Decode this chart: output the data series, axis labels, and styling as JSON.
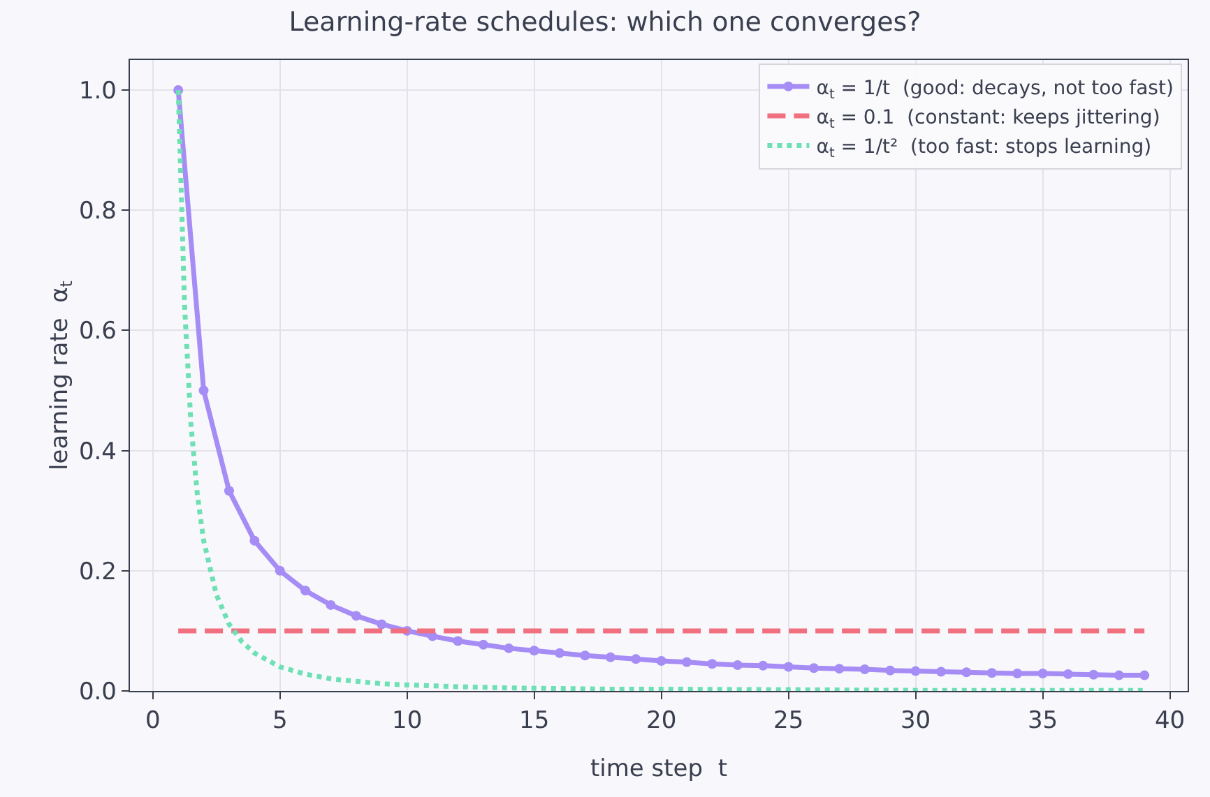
{
  "chart_data": {
    "type": "line",
    "title": "Learning-rate schedules: which one converges?",
    "xlabel": "time step  t",
    "ylabel": "learning rate  α$_{t}$",
    "xlim": [
      -0.9,
      40.7
    ],
    "xticks": [
      0,
      5,
      10,
      15,
      20,
      25,
      30,
      35,
      40
    ],
    "ylim": [
      0,
      1.05
    ],
    "yticks": [
      {
        "value": 0,
        "label": "0.0"
      },
      {
        "value": 0.2,
        "label": "0.2"
      },
      {
        "value": 0.4,
        "label": "0.4"
      },
      {
        "value": 0.6,
        "label": "0.6"
      },
      {
        "value": 0.8,
        "label": "0.8"
      },
      {
        "value": 1,
        "label": "1.0"
      }
    ],
    "grid": true,
    "legend": "top right",
    "series": [
      {
        "name": "α$_{t}$ = 1/t  (good: decays, not too fast)",
        "color": "#a68cf5",
        "marker": "circle",
        "line_style": "solid",
        "x": [
          1,
          2,
          3,
          4,
          5,
          6,
          7,
          8,
          9,
          10,
          11,
          12,
          13,
          14,
          15,
          16,
          17,
          18,
          19,
          20,
          21,
          22,
          23,
          24,
          25,
          26,
          27,
          28,
          29,
          30,
          31,
          32,
          33,
          34,
          35,
          36,
          37,
          38,
          39
        ],
        "values": [
          1,
          0.5,
          0.333,
          0.25,
          0.2,
          0.167,
          0.143,
          0.125,
          0.111,
          0.1,
          0.091,
          0.083,
          0.077,
          0.071,
          0.067,
          0.063,
          0.059,
          0.056,
          0.053,
          0.05,
          0.048,
          0.045,
          0.043,
          0.042,
          0.04,
          0.038,
          0.037,
          0.036,
          0.034,
          0.033,
          0.032,
          0.031,
          0.03,
          0.029,
          0.029,
          0.028,
          0.027,
          0.026,
          0.026
        ]
      },
      {
        "name": "α$_{t}$ = 0.1  (constant: keeps jittering)",
        "color": "#f0707f",
        "marker": "none",
        "line_style": "dashed",
        "x": [
          1,
          39
        ],
        "values": [
          0.1,
          0.1
        ]
      },
      {
        "name": "α$_{t}$ = 1/t²  (too fast: stops learning)",
        "color": "#6ee0b4",
        "marker": "none",
        "line_style": "dotted",
        "x": [
          1,
          1.25,
          1.5,
          1.75,
          2,
          2.5,
          3,
          3.5,
          4,
          5,
          6,
          7,
          8,
          9,
          10,
          12,
          14,
          16,
          18,
          20,
          25,
          30,
          35,
          39
        ],
        "values": [
          1,
          0.64,
          0.444,
          0.327,
          0.25,
          0.16,
          0.111,
          0.082,
          0.063,
          0.04,
          0.028,
          0.02,
          0.016,
          0.012,
          0.01,
          0.007,
          0.005,
          0.004,
          0.003,
          0.003,
          0.002,
          0.001,
          0.001,
          0.001
        ]
      }
    ]
  }
}
